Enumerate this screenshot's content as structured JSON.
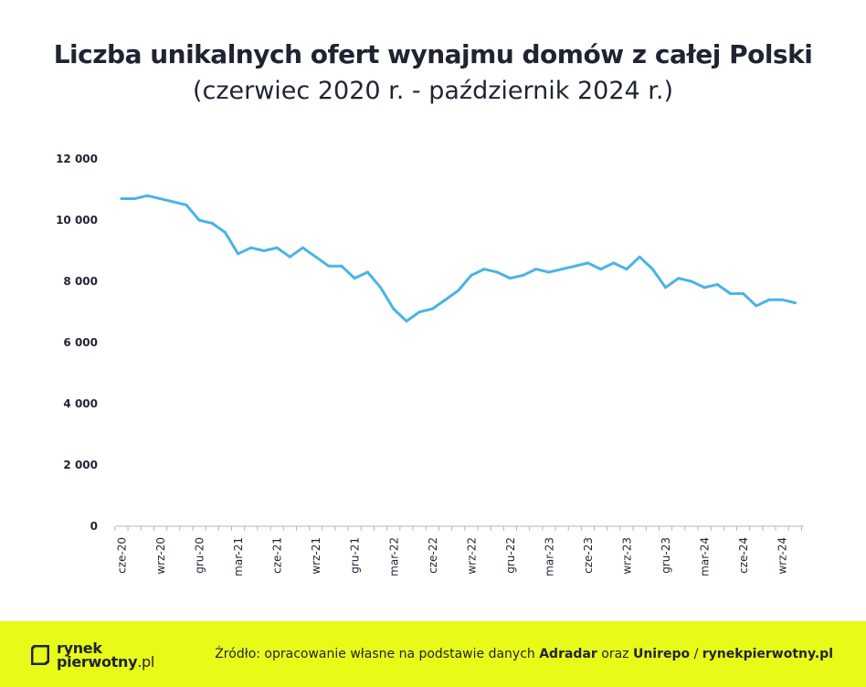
{
  "header": {
    "title": "Liczba unikalnych ofert wynajmu domów z całej Polski",
    "subtitle": "(czerwiec 2020 r. - październik 2024 r.)"
  },
  "chart_data": {
    "type": "line",
    "title": "Liczba unikalnych ofert wynajmu domów z całej Polski",
    "subtitle": "(czerwiec 2020 r. - październik 2024 r.)",
    "xlabel": "",
    "ylabel": "",
    "ylim": [
      0,
      12000
    ],
    "yticks": [
      0,
      2000,
      4000,
      6000,
      8000,
      10000,
      12000
    ],
    "ytick_labels": [
      "0",
      "2 000",
      "4 000",
      "6 000",
      "8 000",
      "10 000",
      "12 000"
    ],
    "xtick_labels": [
      "cze-20",
      "wrz-20",
      "gru-20",
      "mar-21",
      "cze-21",
      "wrz-21",
      "gru-21",
      "mar-22",
      "cze-22",
      "wrz-22",
      "gru-22",
      "mar-23",
      "cze-23",
      "wrz-23",
      "gru-23",
      "mar-24",
      "cze-24",
      "wrz-24"
    ],
    "grid": false,
    "legend": "none",
    "line_color": "#4bb3e6",
    "x": [
      "cze-20",
      "lip-20",
      "sie-20",
      "wrz-20",
      "paź-20",
      "lis-20",
      "gru-20",
      "sty-21",
      "lut-21",
      "mar-21",
      "kwi-21",
      "maj-21",
      "cze-21",
      "lip-21",
      "sie-21",
      "wrz-21",
      "paź-21",
      "lis-21",
      "gru-21",
      "sty-22",
      "lut-22",
      "mar-22",
      "kwi-22",
      "maj-22",
      "cze-22",
      "lip-22",
      "sie-22",
      "wrz-22",
      "paź-22",
      "lis-22",
      "gru-22",
      "sty-23",
      "lut-23",
      "mar-23",
      "kwi-23",
      "maj-23",
      "cze-23",
      "lip-23",
      "sie-23",
      "wrz-23",
      "paź-23",
      "lis-23",
      "gru-23",
      "sty-24",
      "lut-24",
      "mar-24",
      "kwi-24",
      "maj-24",
      "cze-24",
      "lip-24",
      "sie-24",
      "wrz-24",
      "paź-24"
    ],
    "series": [
      {
        "values": [
          10700,
          10700,
          10800,
          10700,
          10600,
          10500,
          10000,
          9900,
          9600,
          8900,
          9100,
          9000,
          9100,
          8800,
          9100,
          8800,
          8500,
          8500,
          8100,
          8300,
          7800,
          7100,
          6700,
          7000,
          7100,
          7400,
          7700,
          8200,
          8400,
          8300,
          8100,
          8200,
          8400,
          8300,
          8400,
          8500,
          8600,
          8400,
          8600,
          8400,
          8800,
          8400,
          7800,
          8100,
          8000,
          7800,
          7900,
          7600,
          7600,
          7200,
          7400,
          7400,
          7300
        ]
      }
    ]
  },
  "footer": {
    "logo_line1": "rynek",
    "logo_line2_bold": "pierwotny",
    "logo_line2_suffix": ".pl",
    "source_prefix": "Źródło: opracowanie własne na podstawie danych ",
    "source_adradar": "Adradar",
    "source_mid": " oraz ",
    "source_unirepo": "Unirepo",
    "source_sep": " / ",
    "source_site": "rynekpierwotny.pl",
    "background": "#e8fb18"
  }
}
